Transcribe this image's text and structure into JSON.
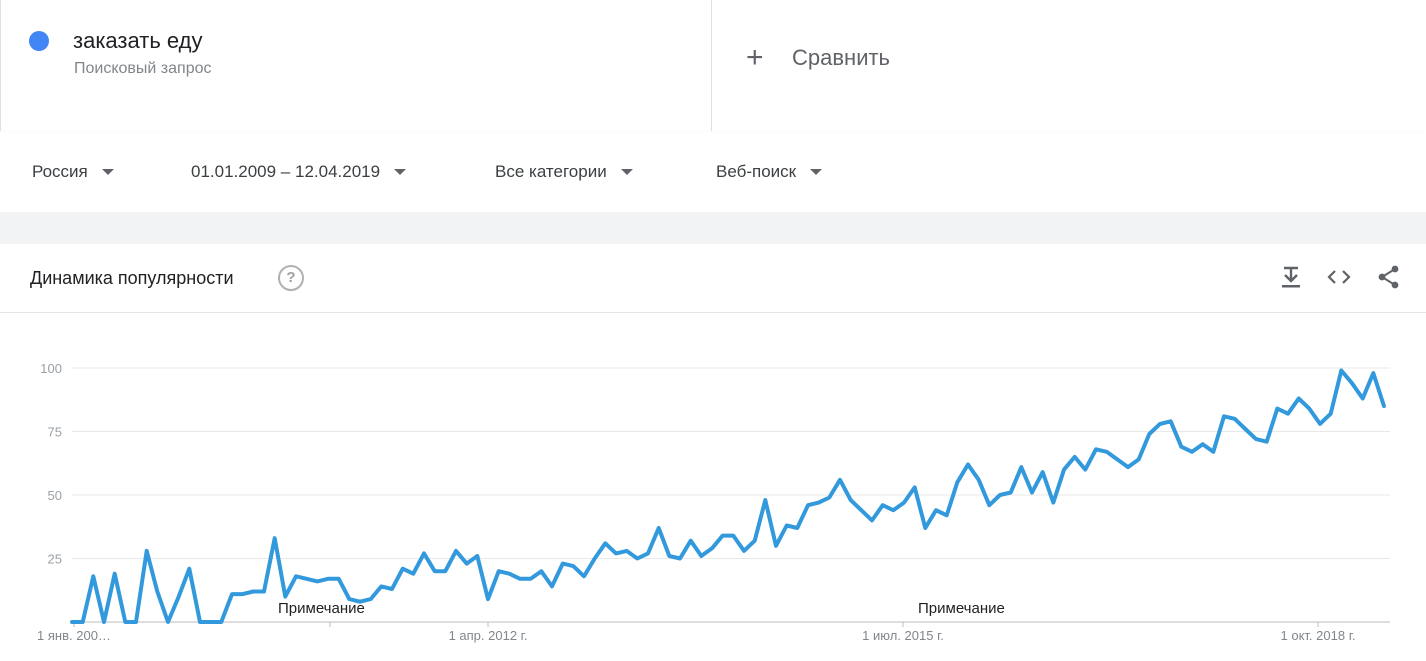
{
  "term": {
    "name": "заказать еду",
    "type": "Поисковый запрос",
    "color": "#4285f4"
  },
  "compare": {
    "icon": "plus-icon",
    "label": "Сравнить"
  },
  "filters": {
    "region": "Россия",
    "period": "01.01.2009 – 12.04.2019",
    "category": "Все категории",
    "search_type": "Веб-поиск"
  },
  "card": {
    "title": "Динамика популярности",
    "tools": [
      "download-icon",
      "embed-icon",
      "share-icon"
    ]
  },
  "notes": [
    "Примечание",
    "Примечание"
  ],
  "chart_data": {
    "type": "line",
    "x_tick_labels": [
      "1 янв. 200…",
      "1 апр. 2012 г.",
      "1 июл. 2015 г.",
      "1 окт. 2018 г."
    ],
    "y_ticks": [
      25,
      50,
      75,
      100
    ],
    "ylim": [
      0,
      100
    ],
    "grid": true,
    "series": [
      {
        "name": "заказать еду",
        "color": "#3399dd",
        "values": [
          0,
          0,
          18,
          0,
          19,
          0,
          0,
          28,
          12,
          0,
          10,
          21,
          0,
          0,
          0,
          11,
          11,
          12,
          12,
          33,
          10,
          18,
          17,
          16,
          17,
          17,
          9,
          8,
          9,
          14,
          13,
          21,
          19,
          27,
          20,
          20,
          28,
          23,
          26,
          9,
          20,
          19,
          17,
          17,
          20,
          14,
          23,
          22,
          18,
          25,
          31,
          27,
          28,
          25,
          27,
          37,
          26,
          25,
          32,
          26,
          29,
          34,
          34,
          28,
          32,
          48,
          30,
          38,
          37,
          46,
          47,
          49,
          56,
          48,
          44,
          40,
          46,
          44,
          47,
          53,
          37,
          44,
          42,
          55,
          62,
          56,
          46,
          50,
          51,
          61,
          51,
          59,
          47,
          60,
          65,
          60,
          68,
          67,
          64,
          61,
          64,
          74,
          78,
          79,
          69,
          67,
          70,
          67,
          81,
          80,
          76,
          72,
          71,
          84,
          82,
          88,
          84,
          78,
          82,
          99,
          94,
          88,
          98,
          85
        ]
      }
    ]
  }
}
